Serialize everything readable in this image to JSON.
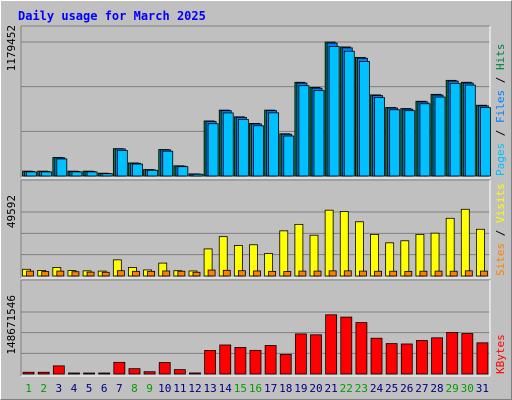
{
  "chart_data": {
    "type": "bar",
    "title": "Daily usage for March 2025",
    "days": [
      "1",
      "2",
      "3",
      "4",
      "5",
      "6",
      "7",
      "8",
      "9",
      "10",
      "11",
      "12",
      "13",
      "14",
      "15",
      "16",
      "17",
      "18",
      "19",
      "20",
      "21",
      "22",
      "23",
      "24",
      "25",
      "26",
      "27",
      "28",
      "29",
      "30",
      "31"
    ],
    "weekend_days": [
      "1",
      "2",
      "8",
      "9",
      "15",
      "16",
      "22",
      "23",
      "29",
      "30"
    ],
    "colors": {
      "title": "#0000ff",
      "day": "#000080",
      "weekend": "#00a000",
      "pages": "#00c0ff",
      "files": "#0080ff",
      "hits": "#008040",
      "sites": "#ff8000",
      "visits": "#ffff00",
      "kbytes": "#ff0000"
    },
    "panels": [
      {
        "id": "hits",
        "ymax_label": "1179452",
        "side_labels": [
          {
            "text": "Pages",
            "color": "#00c0ff"
          },
          {
            "text": " / ",
            "color": "#000000"
          },
          {
            "text": "Files",
            "color": "#0080ff"
          },
          {
            "text": " / ",
            "color": "#000000"
          },
          {
            "text": "Hits",
            "color": "#008040"
          }
        ],
        "ymax": 1179452,
        "series": [
          {
            "key": "hits",
            "values": [
              43000,
              43000,
              163000,
              43000,
              43000,
              25000,
              241000,
              115000,
              57000,
              233000,
              90000,
              19000,
              485000,
              580000,
              521000,
              463000,
              580000,
              372000,
              825000,
              780000,
              1179452,
              1136000,
              1044000,
              714000,
              603000,
              594000,
              658000,
              719000,
              842000,
              825000,
              623000
            ]
          },
          {
            "key": "files",
            "values": [
              40000,
              40000,
              160000,
              40000,
              40000,
              22000,
              238000,
              112000,
              54000,
              230000,
              87000,
              17000,
              480000,
              575000,
              516000,
              458000,
              575000,
              367000,
              818000,
              773000,
              1170000,
              1128000,
              1036000,
              708000,
              598000,
              588000,
              652000,
              712000,
              835000,
              818000,
              617000
            ]
          },
          {
            "key": "pages",
            "values": [
              36000,
              36000,
              150000,
              36000,
              36000,
              20000,
              225000,
              105000,
              50000,
              218000,
              82000,
              15000,
              460000,
              555000,
              498000,
              442000,
              556000,
              352000,
              795000,
              752000,
              1140000,
              1098000,
              1008000,
              690000,
              583000,
              575000,
              636000,
              695000,
              815000,
              800000,
              602000
            ]
          }
        ]
      },
      {
        "id": "visits",
        "ymax_label": "49592",
        "side_labels": [
          {
            "text": "Sites",
            "color": "#ff8000"
          },
          {
            "text": " / ",
            "color": "#000000"
          },
          {
            "text": "Visits",
            "color": "#ffff00"
          }
        ],
        "ymax": 49592,
        "series": [
          {
            "key": "visits",
            "values": [
              5200,
              4300,
              6600,
              4200,
              4000,
              3800,
              12500,
              6600,
              4700,
              10000,
              4100,
              3900,
              21000,
              30500,
              23600,
              24200,
              17400,
              35000,
              40000,
              31600,
              51000,
              50000,
              42000,
              32200,
              25700,
              27300,
              32200,
              33200,
              44700,
              51700,
              36200
            ]
          },
          {
            "key": "sites",
            "values": [
              3800,
              3400,
              3800,
              3300,
              3000,
              2900,
              4100,
              3600,
              3600,
              3900,
              3700,
              2900,
              4600,
              4400,
              4100,
              3900,
              3600,
              3500,
              3800,
              3800,
              4000,
              4000,
              3800,
              3700,
              3700,
              3600,
              3700,
              3800,
              3700,
              4000,
              3800
            ]
          }
        ]
      },
      {
        "id": "kbytes",
        "ymax_label": "148671546",
        "side_labels": [
          {
            "text": "KBytes",
            "color": "#ff0000"
          }
        ],
        "ymax": 148671546,
        "series": [
          {
            "key": "kbytes",
            "values": [
              4200000,
              4200000,
              19500000,
              1500000,
              1500000,
              1500000,
              28000000,
              12800000,
              5500000,
              27500000,
              10500000,
              2500000,
              56500000,
              69600000,
              63600000,
              56700000,
              68400000,
              47100000,
              96000000,
              94000000,
              142000000,
              136500000,
              123300000,
              85800000,
              72900000,
              72000000,
              80300000,
              86800000,
              99700000,
              97000000,
              74800000
            ]
          }
        ]
      }
    ]
  }
}
